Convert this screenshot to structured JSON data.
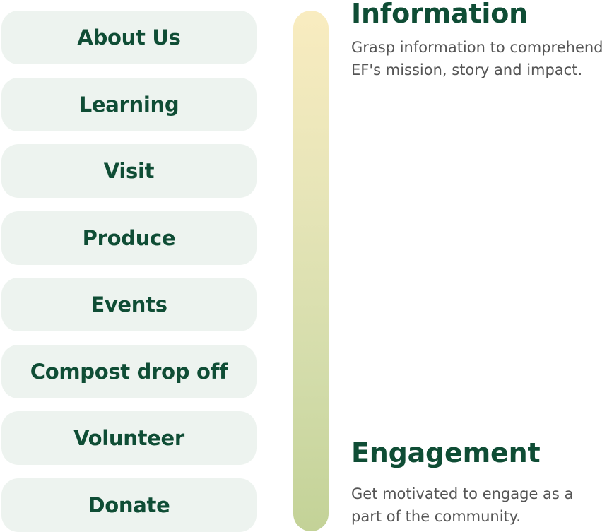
{
  "nav": {
    "items": [
      {
        "label": "About Us"
      },
      {
        "label": "Learning"
      },
      {
        "label": "Visit"
      },
      {
        "label": "Produce"
      },
      {
        "label": "Events"
      },
      {
        "label": "Compost drop off"
      },
      {
        "label": "Volunteer"
      },
      {
        "label": "Donate"
      }
    ]
  },
  "journey": {
    "colors": {
      "top": "#f9ecc0",
      "bottom": "#c3d297",
      "heading": "#0f4d35",
      "button_bg": "#edf3ef",
      "body_text": "#555555"
    }
  },
  "stages": {
    "information": {
      "title": "Information",
      "description": "Grasp information to comprehend EF's mission, story and impact."
    },
    "engagement": {
      "title": "Engagement",
      "description": "Get motivated to engage as a part of the community."
    }
  }
}
